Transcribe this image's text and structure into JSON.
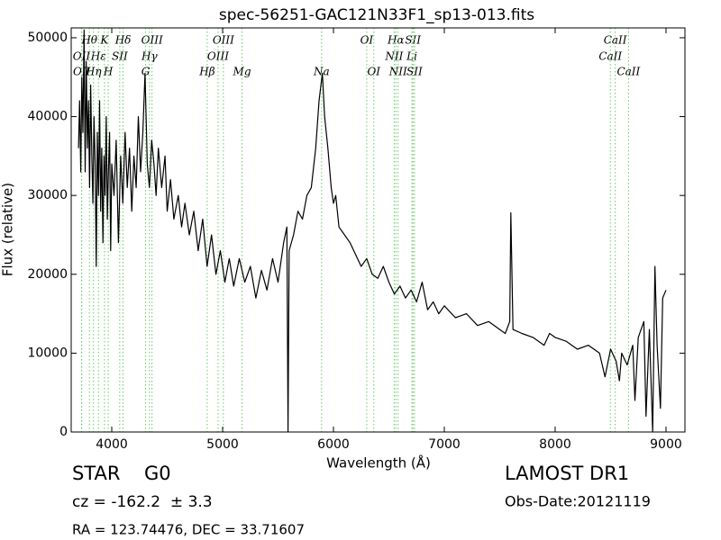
{
  "chart_data": {
    "type": "line",
    "title": "spec-56251-GAC121N33F1_sp13-013.fits",
    "x_label": "Wavelength (Å)",
    "y_label": "Flux (relative)",
    "color": "#000000",
    "xlim": [
      3634,
      9171
    ],
    "ylim": [
      0,
      51250
    ],
    "xticks": [
      4000,
      5000,
      6000,
      7000,
      8000,
      9000
    ],
    "yticks": [
      0,
      10000,
      20000,
      30000,
      40000,
      50000
    ],
    "line_color": "#66cc66",
    "x": [
      3700,
      3710,
      3720,
      3730,
      3740,
      3750,
      3760,
      3770,
      3780,
      3790,
      3800,
      3810,
      3820,
      3830,
      3840,
      3850,
      3860,
      3870,
      3880,
      3890,
      3900,
      3910,
      3920,
      3930,
      3940,
      3950,
      3960,
      3970,
      3980,
      3990,
      4000,
      4020,
      4040,
      4060,
      4080,
      4100,
      4120,
      4140,
      4160,
      4180,
      4200,
      4220,
      4240,
      4260,
      4280,
      4300,
      4320,
      4340,
      4360,
      4380,
      4400,
      4420,
      4450,
      4480,
      4500,
      4530,
      4560,
      4600,
      4630,
      4660,
      4700,
      4740,
      4780,
      4820,
      4860,
      4900,
      4940,
      4980,
      5020,
      5060,
      5100,
      5150,
      5200,
      5250,
      5300,
      5350,
      5400,
      5450,
      5500,
      5550,
      5580,
      5590,
      5600,
      5640,
      5680,
      5720,
      5760,
      5800,
      5840,
      5870,
      5900,
      5920,
      5950,
      5980,
      6000,
      6020,
      6050,
      6100,
      6150,
      6200,
      6250,
      6300,
      6350,
      6400,
      6450,
      6500,
      6550,
      6600,
      6650,
      6700,
      6750,
      6800,
      6850,
      6900,
      6950,
      7000,
      7100,
      7200,
      7300,
      7400,
      7500,
      7550,
      7590,
      7600,
      7620,
      7700,
      7800,
      7900,
      7950,
      8000,
      8100,
      8200,
      8300,
      8400,
      8450,
      8500,
      8550,
      8580,
      8600,
      8650,
      8700,
      8720,
      8750,
      8800,
      8820,
      8850,
      8880,
      8900,
      8920,
      8950,
      8970,
      9000
    ],
    "values": [
      36000,
      42000,
      33000,
      45000,
      38000,
      51000,
      33000,
      47000,
      36000,
      42000,
      31000,
      44000,
      35000,
      29000,
      40000,
      34000,
      21000,
      38000,
      30000,
      42000,
      28000,
      36000,
      24000,
      35000,
      30000,
      40000,
      27000,
      33000,
      38000,
      23000,
      34000,
      30000,
      37000,
      24000,
      35000,
      29000,
      38000,
      31000,
      36000,
      28000,
      35000,
      31000,
      40000,
      33000,
      38000,
      45500,
      34000,
      31000,
      37000,
      34000,
      30000,
      36000,
      31000,
      35000,
      28000,
      32000,
      27000,
      30000,
      26000,
      29000,
      25000,
      28000,
      23000,
      27000,
      21000,
      25000,
      20000,
      23000,
      19000,
      22000,
      18500,
      22000,
      19000,
      21000,
      17000,
      20500,
      18000,
      22000,
      19000,
      24000,
      26000,
      0,
      23000,
      25000,
      28000,
      27000,
      30000,
      31000,
      36000,
      42000,
      45500,
      40000,
      36000,
      31000,
      29000,
      30000,
      26000,
      25000,
      24000,
      22500,
      21000,
      22000,
      20000,
      19500,
      21000,
      19000,
      17500,
      18500,
      17000,
      18000,
      16500,
      19000,
      15500,
      16500,
      15000,
      16000,
      14500,
      15000,
      13500,
      14000,
      13000,
      12500,
      14000,
      27800,
      13000,
      12500,
      12000,
      11000,
      12500,
      12000,
      11500,
      10500,
      11000,
      10000,
      7000,
      10500,
      9000,
      6500,
      10000,
      8500,
      11000,
      4000,
      12000,
      14000,
      2000,
      13000,
      0,
      21000,
      11000,
      3000,
      17000,
      18000
    ],
    "spectral_lines": [
      [
        {
          "label": "Hθ",
          "wavelength": 3798
        },
        {
          "label": "K",
          "wavelength": 3934
        },
        {
          "label": "Hδ",
          "wavelength": 4102
        },
        {
          "label": "OIII",
          "wavelength": 4363
        },
        {
          "label": "OIII",
          "wavelength": 5007
        },
        {
          "label": "OI",
          "wavelength": 6300
        },
        {
          "label": "Hα",
          "wavelength": 6563
        },
        {
          "label": "SII",
          "wavelength": 6717
        },
        {
          "label": "CaII",
          "wavelength": 8542
        }
      ],
      [
        {
          "label": "OII",
          "wavelength": 3727
        },
        {
          "label": "Hε",
          "wavelength": 3880
        },
        {
          "label": "SII",
          "wavelength": 4072
        },
        {
          "label": "Hγ",
          "wavelength": 4340
        },
        {
          "label": "OIII",
          "wavelength": 4959
        },
        {
          "label": "NII",
          "wavelength": 6548
        },
        {
          "label": "Li",
          "wavelength": 6708
        },
        {
          "label": "CaII",
          "wavelength": 8498
        }
      ],
      [
        {
          "label": "OII",
          "wavelength": 3729
        },
        {
          "label": "Hη",
          "wavelength": 3835
        },
        {
          "label": "H",
          "wavelength": 3968
        },
        {
          "label": "G",
          "wavelength": 4305
        },
        {
          "label": "Hβ",
          "wavelength": 4861
        },
        {
          "label": "Mg",
          "wavelength": 5175
        },
        {
          "label": "Na",
          "wavelength": 5893
        },
        {
          "label": "OI",
          "wavelength": 6364
        },
        {
          "label": "NII",
          "wavelength": 6583
        },
        {
          "label": "SII",
          "wavelength": 6731
        },
        {
          "label": "CaII",
          "wavelength": 8662
        }
      ]
    ],
    "object_class": "STAR",
    "subclass": "G0",
    "redshift": "cz = -162.2  ± 3.3",
    "coordinates": "RA = 123.74476, DEC = 33.71607",
    "survey": "LAMOST DR1",
    "obs_date": "Obs-Date:20121119"
  }
}
